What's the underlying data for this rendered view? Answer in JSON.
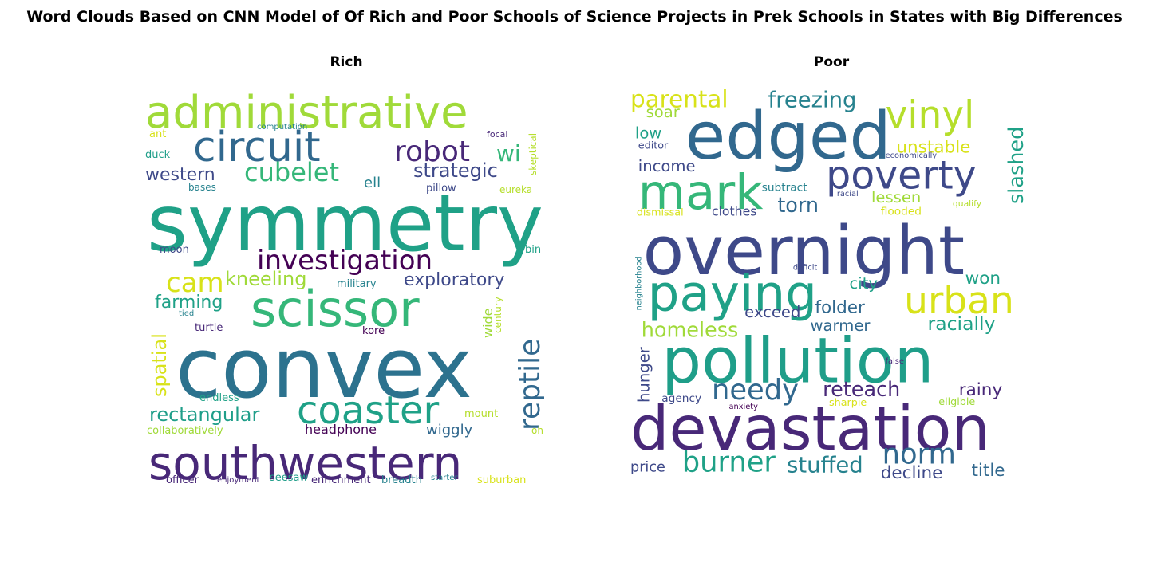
{
  "chart_data": {
    "type": "wordcloud",
    "title": "Word Clouds Based on CNN Model of Of Rich and Poor Schools of Science Projects in Prek Schools in States with Big Differences",
    "panels": [
      {
        "title": "Rich",
        "words": [
          {
            "text": "administrative",
            "weight": 56,
            "color": "#a0da39"
          },
          {
            "text": "circuit",
            "weight": 52,
            "color": "#31688e"
          },
          {
            "text": "robot",
            "weight": 36,
            "color": "#482878"
          },
          {
            "text": "wi",
            "weight": 28,
            "color": "#35b779"
          },
          {
            "text": "western",
            "weight": 22,
            "color": "#3e4989"
          },
          {
            "text": "cubelet",
            "weight": 32,
            "color": "#35b779"
          },
          {
            "text": "strategic",
            "weight": 24,
            "color": "#3e4989"
          },
          {
            "text": "ell",
            "weight": 18,
            "color": "#26828e"
          },
          {
            "text": "skeptical",
            "weight": 12,
            "color": "#b5de2b"
          },
          {
            "text": "computation",
            "weight": 10,
            "color": "#26828e"
          },
          {
            "text": "focal",
            "weight": 11,
            "color": "#482878"
          },
          {
            "text": "ant",
            "weight": 13,
            "color": "#d8e219"
          },
          {
            "text": "duck",
            "weight": 13,
            "color": "#1f9e89"
          },
          {
            "text": "bases",
            "weight": 12,
            "color": "#26828e"
          },
          {
            "text": "pillow",
            "weight": 13,
            "color": "#3e4989"
          },
          {
            "text": "eureka",
            "weight": 12,
            "color": "#b5de2b"
          },
          {
            "text": "symmetry",
            "weight": 98,
            "color": "#1fa187"
          },
          {
            "text": "moon",
            "weight": 13,
            "color": "#3e4989"
          },
          {
            "text": "bin",
            "weight": 13,
            "color": "#1fa187"
          },
          {
            "text": "investigation",
            "weight": 34,
            "color": "#440154"
          },
          {
            "text": "cam",
            "weight": 34,
            "color": "#d8e219"
          },
          {
            "text": "kneeling",
            "weight": 24,
            "color": "#a0da39"
          },
          {
            "text": "military",
            "weight": 13,
            "color": "#26828e"
          },
          {
            "text": "exploratory",
            "weight": 22,
            "color": "#3e4989"
          },
          {
            "text": "scissor",
            "weight": 62,
            "color": "#35b779"
          },
          {
            "text": "farming",
            "weight": 22,
            "color": "#1fa187"
          },
          {
            "text": "tied",
            "weight": 10,
            "color": "#26828e"
          },
          {
            "text": "turtle",
            "weight": 13,
            "color": "#482878"
          },
          {
            "text": "kore",
            "weight": 13,
            "color": "#440154"
          },
          {
            "text": "wide",
            "weight": 16,
            "color": "#a0da39"
          },
          {
            "text": "century",
            "weight": 12,
            "color": "#b5de2b"
          },
          {
            "text": "reptile",
            "weight": 36,
            "color": "#31688e"
          },
          {
            "text": "spatial",
            "weight": 24,
            "color": "#d8e219"
          },
          {
            "text": "convex",
            "weight": 104,
            "color": "#2c728e"
          },
          {
            "text": "endless",
            "weight": 13,
            "color": "#1fa187"
          },
          {
            "text": "rectangular",
            "weight": 24,
            "color": "#1f9e89"
          },
          {
            "text": "coaster",
            "weight": 48,
            "color": "#1fa187"
          },
          {
            "text": "headphone",
            "weight": 16,
            "color": "#440154"
          },
          {
            "text": "mount",
            "weight": 13,
            "color": "#b5de2b"
          },
          {
            "text": "wiggly",
            "weight": 18,
            "color": "#31688e"
          },
          {
            "text": "collaboratively",
            "weight": 13,
            "color": "#a0da39"
          },
          {
            "text": "oh",
            "weight": 12,
            "color": "#b5de2b"
          },
          {
            "text": "southwestern",
            "weight": 58,
            "color": "#482878"
          },
          {
            "text": "officer",
            "weight": 13,
            "color": "#482878"
          },
          {
            "text": "enjoyment",
            "weight": 10,
            "color": "#482878"
          },
          {
            "text": "seesaw",
            "weight": 13,
            "color": "#1f9e89"
          },
          {
            "text": "enrichment",
            "weight": 13,
            "color": "#482878"
          },
          {
            "text": "breadth",
            "weight": 13,
            "color": "#26828e"
          },
          {
            "text": "starter",
            "weight": 10,
            "color": "#26828e"
          },
          {
            "text": "suburban",
            "weight": 13,
            "color": "#d8e219"
          }
        ]
      },
      {
        "title": "Poor",
        "words": [
          {
            "text": "parental",
            "weight": 30,
            "color": "#d8e219"
          },
          {
            "text": "freezing",
            "weight": 28,
            "color": "#26828e"
          },
          {
            "text": "vinyl",
            "weight": 48,
            "color": "#b5de2b"
          },
          {
            "text": "edged",
            "weight": 84,
            "color": "#31688e"
          },
          {
            "text": "soar",
            "weight": 20,
            "color": "#a0da39"
          },
          {
            "text": "slashed",
            "weight": 26,
            "color": "#1fa187"
          },
          {
            "text": "low",
            "weight": 20,
            "color": "#1fa187"
          },
          {
            "text": "unstable",
            "weight": 22,
            "color": "#d8e219"
          },
          {
            "text": "editor",
            "weight": 13,
            "color": "#3e4989"
          },
          {
            "text": "economically",
            "weight": 10,
            "color": "#3e4989"
          },
          {
            "text": "poverty",
            "weight": 50,
            "color": "#3e4989"
          },
          {
            "text": "income",
            "weight": 20,
            "color": "#3e4989"
          },
          {
            "text": "mark",
            "weight": 62,
            "color": "#35b779"
          },
          {
            "text": "subtract",
            "weight": 14,
            "color": "#26828e"
          },
          {
            "text": "racial",
            "weight": 10,
            "color": "#3e4989"
          },
          {
            "text": "lessen",
            "weight": 20,
            "color": "#a0da39"
          },
          {
            "text": "qualify",
            "weight": 11,
            "color": "#b5de2b"
          },
          {
            "text": "torn",
            "weight": 26,
            "color": "#31688e"
          },
          {
            "text": "dismissal",
            "weight": 13,
            "color": "#d8e219"
          },
          {
            "text": "clothes",
            "weight": 16,
            "color": "#3e4989"
          },
          {
            "text": "flooded",
            "weight": 14,
            "color": "#d8e219"
          },
          {
            "text": "overnight",
            "weight": 86,
            "color": "#3e4989"
          },
          {
            "text": "deficit",
            "weight": 10,
            "color": "#3e4989"
          },
          {
            "text": "neighborhood",
            "weight": 10,
            "color": "#26828e"
          },
          {
            "text": "paying",
            "weight": 64,
            "color": "#1fa187"
          },
          {
            "text": "city",
            "weight": 20,
            "color": "#1fa187"
          },
          {
            "text": "won",
            "weight": 22,
            "color": "#1fa187"
          },
          {
            "text": "urban",
            "weight": 48,
            "color": "#d8e219"
          },
          {
            "text": "exceed",
            "weight": 20,
            "color": "#3e4989"
          },
          {
            "text": "folder",
            "weight": 22,
            "color": "#31688e"
          },
          {
            "text": "homeless",
            "weight": 26,
            "color": "#a0da39"
          },
          {
            "text": "warmer",
            "weight": 20,
            "color": "#31688e"
          },
          {
            "text": "racially",
            "weight": 24,
            "color": "#1fa187"
          },
          {
            "text": "pollution",
            "weight": 80,
            "color": "#1f9e89"
          },
          {
            "text": "hunger",
            "weight": 20,
            "color": "#3e4989"
          },
          {
            "text": "false",
            "weight": 10,
            "color": "#482878"
          },
          {
            "text": "needy",
            "weight": 36,
            "color": "#31688e"
          },
          {
            "text": "reteach",
            "weight": 26,
            "color": "#482878"
          },
          {
            "text": "rainy",
            "weight": 22,
            "color": "#482878"
          },
          {
            "text": "agency",
            "weight": 14,
            "color": "#3e4989"
          },
          {
            "text": "anxiety",
            "weight": 10,
            "color": "#440154"
          },
          {
            "text": "sharpie",
            "weight": 13,
            "color": "#d8e219"
          },
          {
            "text": "eligible",
            "weight": 13,
            "color": "#a0da39"
          },
          {
            "text": "devastation",
            "weight": 78,
            "color": "#482878"
          },
          {
            "text": "burner",
            "weight": 36,
            "color": "#1fa187"
          },
          {
            "text": "stuffed",
            "weight": 28,
            "color": "#26828e"
          },
          {
            "text": "norm",
            "weight": 36,
            "color": "#31688e"
          },
          {
            "text": "price",
            "weight": 18,
            "color": "#3e4989"
          },
          {
            "text": "decline",
            "weight": 22,
            "color": "#3e4989"
          },
          {
            "text": "title",
            "weight": 22,
            "color": "#31688e"
          }
        ]
      }
    ]
  }
}
